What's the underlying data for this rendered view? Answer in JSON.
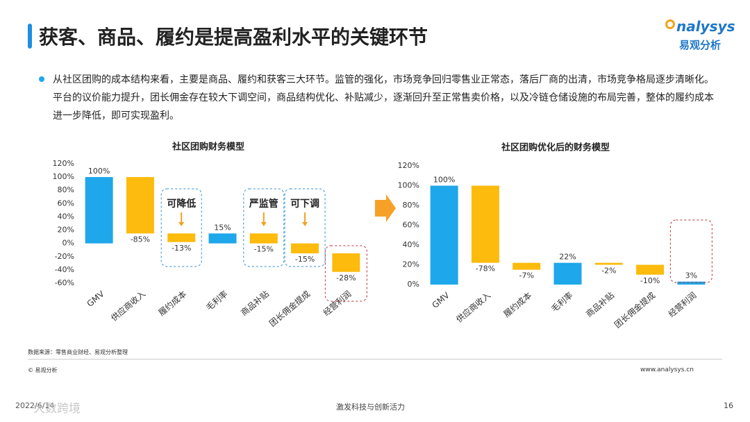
{
  "header": {
    "title": "获客、商品、履约是提高盈利水平的关键环节",
    "logo": "nalysys",
    "logo_sub": "易观分析"
  },
  "bullet": "从社区团购的成本结构来看，主要是商品、履约和获客三大环节。监管的强化，市场竞争回归零售业正常态，落后厂商的出清，市场竞争格局逐步清晰化。平台的议价能力提升，团长佣金存在较大下调空间，商品结构优化、补贴减少，逐渐回升至正常售卖价格，以及冷链仓储设施的布局完善，整体的履约成本进一步降低，即可实现盈利。",
  "chart_data": [
    {
      "type": "waterfall",
      "title": "社区团购财务模型",
      "categories": [
        "GMV",
        "供应商收入",
        "履约成本",
        "毛利率",
        "商品补贴",
        "团长佣金提成",
        "经营利润"
      ],
      "values": [
        100,
        -85,
        -13,
        15,
        -15,
        -15,
        -28
      ],
      "value_labels": [
        "100%",
        "-85%",
        "-13%",
        "15%",
        "-15%",
        "-15%",
        "-28%"
      ],
      "measure": [
        "total",
        "relative",
        "relative",
        "total",
        "relative",
        "relative",
        "relative"
      ],
      "total_color": "#1ea7ea",
      "step_color": "#fcbb0d",
      "ylim": [
        -60,
        120
      ],
      "yticks": [
        {
          "value": -60,
          "label": "-60%"
        },
        {
          "value": -40,
          "label": "-40%"
        },
        {
          "value": -20,
          "label": "-20%"
        },
        {
          "value": 0,
          "label": "0%"
        },
        {
          "value": 20,
          "label": "20%"
        },
        {
          "value": 40,
          "label": "40%"
        },
        {
          "value": 60,
          "label": "60%"
        },
        {
          "value": 80,
          "label": "80%"
        },
        {
          "value": 100,
          "label": "100%"
        },
        {
          "value": 120,
          "label": "120%"
        }
      ],
      "annotations": [
        "可降低",
        "严监管",
        "可下调"
      ]
    },
    {
      "type": "waterfall",
      "title": "社区团购优化后的财务模型",
      "categories": [
        "GMV",
        "供应商收入",
        "履约成本",
        "毛利率",
        "商品补贴",
        "团长佣金提成",
        "经营利润"
      ],
      "values": [
        100,
        -78,
        -7,
        22,
        -2,
        -10,
        3
      ],
      "value_labels": [
        "100%",
        "-78%",
        "-7%",
        "22%",
        "-2%",
        "-10%",
        "3%"
      ],
      "measure": [
        "total",
        "relative",
        "relative",
        "total",
        "relative",
        "relative",
        "total"
      ],
      "total_color": "#1ea7ea",
      "step_color": "#fcbb0d",
      "ylim": [
        0,
        120
      ],
      "yticks": [
        {
          "value": 0,
          "label": "0%"
        },
        {
          "value": 20,
          "label": "20%"
        },
        {
          "value": 40,
          "label": "40%"
        },
        {
          "value": 60,
          "label": "60%"
        },
        {
          "value": 80,
          "label": "80%"
        },
        {
          "value": 100,
          "label": "100%"
        },
        {
          "value": 120,
          "label": "120%"
        }
      ]
    }
  ],
  "footer": {
    "source": "数据来源：零售商业财经、易观分析整理",
    "copyright": "© 易观分析",
    "url": "www.analysys.cn",
    "date": "2022/6/14",
    "slogan": "激发科技与创新活力",
    "page": "16",
    "watermark": "大数跨境"
  }
}
